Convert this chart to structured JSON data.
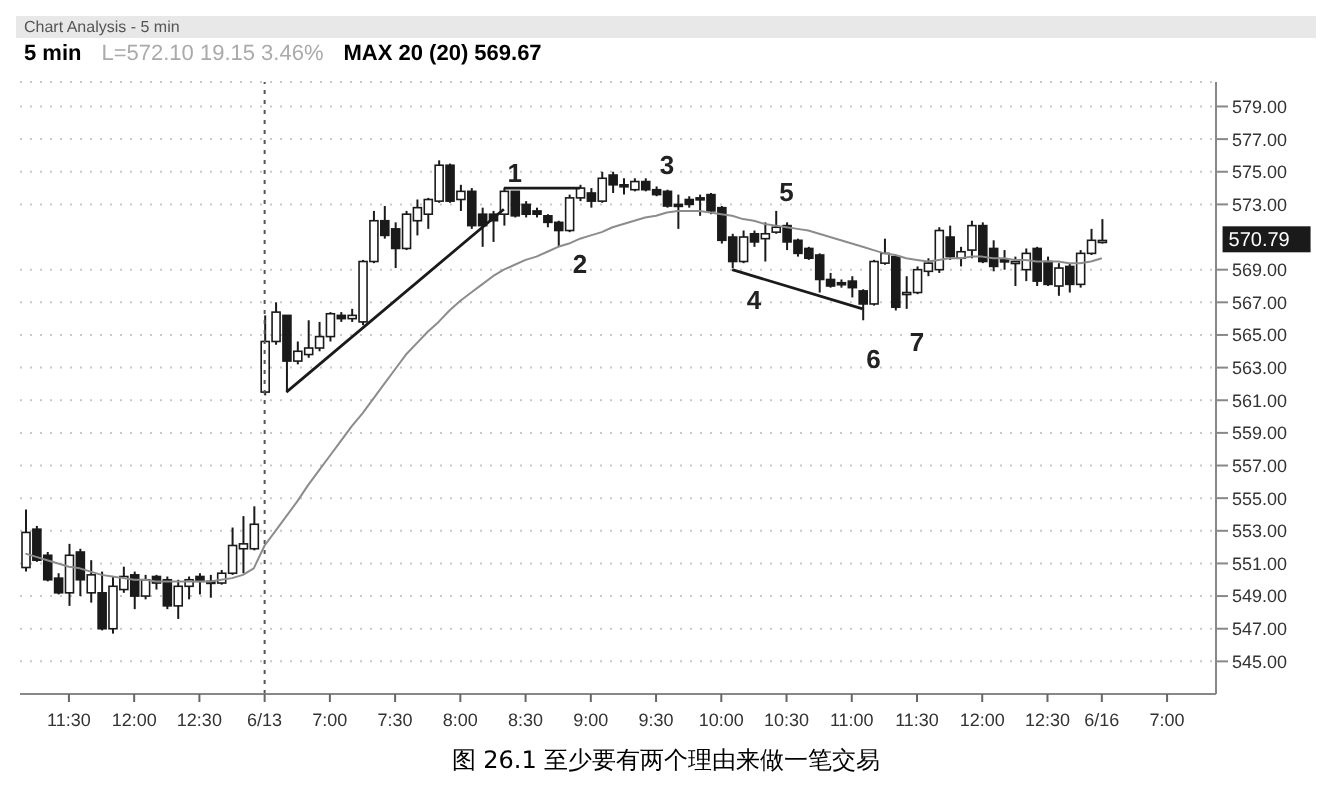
{
  "chart_data": {
    "type": "candlestick",
    "title": "5 min",
    "subtitle": "L=572.10  19.15  3.46%",
    "annotations": [
      "Chart Analysis - 5 min",
      "MAX 20 (20)  569.67",
      "图 26.1 至少要有两个理由来做一笔交易",
      "1",
      "2",
      "3",
      "4",
      "5",
      "6",
      "7",
      "570.79"
    ],
    "categories": [
      null,
      null,
      null,
      null,
      "11:30",
      null,
      null,
      null,
      null,
      null,
      "12:00",
      null,
      null,
      null,
      null,
      null,
      "12:30",
      null,
      null,
      null,
      null,
      null,
      "6/13",
      null,
      null,
      null,
      null,
      null,
      "7:00",
      null,
      null,
      null,
      null,
      null,
      "7:30",
      null,
      null,
      null,
      null,
      null,
      "8:00",
      null,
      null,
      null,
      null,
      null,
      "8:30",
      null,
      null,
      null,
      null,
      null,
      "9:00",
      null,
      null,
      null,
      null,
      null,
      "9:30",
      null,
      null,
      null,
      null,
      null,
      "10:00",
      null,
      null,
      null,
      null,
      null,
      "10:30",
      null,
      null,
      null,
      null,
      null,
      "11:00",
      null,
      null,
      null,
      null,
      null,
      "11:30",
      null,
      null,
      null,
      null,
      null,
      "12:00",
      null,
      null,
      null,
      null,
      null,
      "12:30",
      null,
      null,
      null,
      null,
      "6/16",
      null,
      null,
      null,
      null,
      null,
      "7:00",
      null,
      null,
      null,
      null
    ],
    "ohlc": [
      [
        550.75,
        554.3,
        550.5,
        552.9
      ],
      [
        553.1,
        553.3,
        551.1,
        551.2
      ],
      [
        551.5,
        551.7,
        549.9,
        550.0
      ],
      [
        550.1,
        550.4,
        549.1,
        549.2
      ],
      [
        549.2,
        552.2,
        548.4,
        551.5
      ],
      [
        551.7,
        551.9,
        549.0,
        550.0
      ],
      [
        549.2,
        551.2,
        548.6,
        550.3
      ],
      [
        549.2,
        550.5,
        546.9,
        547.0
      ],
      [
        547.0,
        550.2,
        546.7,
        549.6
      ],
      [
        549.4,
        550.8,
        549.2,
        550.2
      ],
      [
        550.3,
        550.5,
        548.2,
        549.0
      ],
      [
        549.0,
        550.3,
        548.8,
        550.0
      ],
      [
        550.2,
        550.3,
        549.4,
        549.8
      ],
      [
        550.0,
        550.2,
        548.2,
        548.4
      ],
      [
        548.4,
        550.0,
        547.6,
        549.6
      ],
      [
        549.6,
        550.2,
        548.8,
        550.0
      ],
      [
        550.2,
        550.4,
        549.1,
        549.9
      ],
      [
        549.9,
        550.3,
        548.9,
        549.8
      ],
      [
        549.8,
        550.6,
        549.7,
        550.4
      ],
      [
        550.4,
        553.2,
        550.3,
        552.1
      ],
      [
        551.9,
        553.9,
        550.4,
        552.2
      ],
      [
        551.9,
        554.5,
        551.8,
        553.4
      ],
      [
        561.5,
        566.2,
        561.3,
        564.6
      ],
      [
        564.6,
        567.0,
        564.4,
        566.4
      ],
      [
        566.2,
        566.2,
        561.5,
        563.4
      ],
      [
        563.4,
        564.6,
        563.2,
        564.0
      ],
      [
        563.8,
        565.9,
        563.6,
        564.2
      ],
      [
        564.2,
        565.8,
        564.0,
        564.9
      ],
      [
        564.9,
        566.4,
        564.6,
        566.3
      ],
      [
        566.2,
        566.4,
        565.8,
        566.0
      ],
      [
        566.0,
        566.6,
        565.8,
        566.2
      ],
      [
        565.8,
        569.6,
        565.6,
        569.5
      ],
      [
        569.5,
        572.6,
        569.4,
        572.0
      ],
      [
        572.0,
        572.9,
        570.9,
        571.1
      ],
      [
        571.5,
        571.9,
        569.1,
        570.3
      ],
      [
        570.3,
        572.6,
        570.2,
        572.4
      ],
      [
        572.0,
        573.3,
        571.1,
        572.8
      ],
      [
        572.4,
        573.4,
        571.5,
        573.3
      ],
      [
        573.2,
        575.7,
        573.1,
        575.4
      ],
      [
        575.4,
        575.5,
        573.1,
        573.2
      ],
      [
        573.3,
        574.2,
        572.6,
        573.8
      ],
      [
        573.8,
        574.0,
        571.5,
        571.7
      ],
      [
        572.4,
        572.8,
        570.4,
        571.7
      ],
      [
        572.4,
        572.6,
        570.7,
        572.0
      ],
      [
        572.4,
        574.0,
        571.7,
        573.8
      ],
      [
        573.8,
        573.8,
        572.2,
        572.3
      ],
      [
        573.0,
        573.2,
        572.2,
        572.4
      ],
      [
        572.6,
        572.8,
        572.2,
        572.4
      ],
      [
        572.3,
        572.4,
        571.6,
        571.9
      ],
      [
        571.9,
        572.0,
        570.4,
        571.4
      ],
      [
        571.4,
        573.6,
        571.3,
        573.4
      ],
      [
        573.4,
        574.2,
        573.2,
        574.0
      ],
      [
        573.7,
        574.0,
        572.8,
        573.2
      ],
      [
        573.2,
        575.0,
        573.1,
        574.6
      ],
      [
        574.8,
        575.0,
        573.7,
        574.2
      ],
      [
        574.2,
        574.6,
        573.6,
        574.1
      ],
      [
        573.9,
        574.6,
        573.8,
        574.4
      ],
      [
        574.4,
        574.6,
        573.8,
        573.9
      ],
      [
        573.9,
        574.1,
        573.5,
        573.6
      ],
      [
        573.8,
        573.9,
        572.8,
        572.9
      ],
      [
        573.0,
        573.6,
        571.5,
        572.9
      ],
      [
        573.3,
        573.5,
        572.8,
        573.0
      ],
      [
        573.4,
        573.6,
        572.3,
        573.3
      ],
      [
        573.6,
        573.7,
        572.4,
        572.6
      ],
      [
        572.8,
        572.9,
        570.6,
        570.8
      ],
      [
        571.0,
        571.2,
        569.1,
        569.5
      ],
      [
        569.5,
        571.4,
        569.4,
        571.0
      ],
      [
        571.2,
        571.4,
        570.4,
        570.7
      ],
      [
        570.9,
        571.9,
        569.5,
        571.2
      ],
      [
        571.3,
        572.6,
        571.2,
        571.6
      ],
      [
        571.7,
        571.9,
        570.2,
        570.7
      ],
      [
        570.8,
        570.9,
        569.8,
        570.0
      ],
      [
        570.3,
        570.4,
        569.6,
        569.7
      ],
      [
        569.9,
        570.0,
        567.6,
        568.4
      ],
      [
        568.4,
        568.8,
        567.9,
        568.0
      ],
      [
        568.2,
        568.4,
        567.9,
        568.1
      ],
      [
        568.3,
        568.6,
        567.3,
        567.9
      ],
      [
        567.7,
        567.8,
        565.9,
        566.9
      ],
      [
        566.9,
        569.6,
        566.8,
        569.5
      ],
      [
        569.4,
        570.9,
        569.3,
        570.0
      ],
      [
        569.8,
        569.8,
        566.5,
        566.7
      ],
      [
        567.5,
        568.6,
        566.6,
        567.6
      ],
      [
        567.6,
        569.2,
        567.5,
        569.0
      ],
      [
        568.9,
        569.7,
        568.6,
        569.4
      ],
      [
        569.0,
        571.6,
        568.8,
        571.4
      ],
      [
        571.0,
        571.7,
        569.6,
        569.8
      ],
      [
        569.7,
        570.4,
        569.2,
        570.1
      ],
      [
        570.2,
        572.0,
        569.7,
        571.7
      ],
      [
        571.7,
        571.9,
        569.4,
        569.5
      ],
      [
        570.3,
        570.8,
        568.9,
        569.2
      ],
      [
        569.6,
        570.2,
        569.0,
        569.5
      ],
      [
        569.4,
        569.8,
        568.0,
        569.5
      ],
      [
        569.0,
        570.3,
        568.3,
        570.0
      ],
      [
        570.3,
        570.4,
        568.0,
        568.3
      ],
      [
        569.5,
        569.8,
        568.0,
        568.1
      ],
      [
        568.0,
        569.4,
        567.4,
        569.1
      ],
      [
        569.2,
        569.4,
        567.6,
        568.1
      ],
      [
        568.1,
        570.2,
        567.9,
        570.0
      ],
      [
        570.0,
        571.5,
        569.9,
        570.8
      ],
      [
        570.7,
        572.1,
        570.6,
        570.79
      ],
      null,
      null,
      null,
      null,
      null,
      null,
      null,
      null,
      null,
      null
    ],
    "series": [
      {
        "type": "line",
        "color": "#8c8c8c",
        "values": [
          551.6,
          551.4,
          551.2,
          551.0,
          550.8,
          550.7,
          550.5,
          550.3,
          550.2,
          550.1,
          550.0,
          550.0,
          549.9,
          549.9,
          549.9,
          549.9,
          549.9,
          549.9,
          550.0,
          550.1,
          550.3,
          550.7,
          552.1,
          553.0,
          553.9,
          554.8,
          555.8,
          556.7,
          557.6,
          558.5,
          559.4,
          560.2,
          561.1,
          562.0,
          562.9,
          563.8,
          564.5,
          565.2,
          565.8,
          566.5,
          567.1,
          567.6,
          568.1,
          568.6,
          569.0,
          569.3,
          569.6,
          569.8,
          570.1,
          570.4,
          570.6,
          570.9,
          571.1,
          571.3,
          571.6,
          571.8,
          572.0,
          572.2,
          572.3,
          572.5,
          572.6,
          572.6,
          572.6,
          572.5,
          572.4,
          572.3,
          572.1,
          572.0,
          571.8,
          571.7,
          571.6,
          571.5,
          571.4,
          571.2,
          571.0,
          570.8,
          570.6,
          570.4,
          570.2,
          570.0,
          569.9,
          569.7,
          569.6,
          569.5,
          569.6,
          569.7,
          569.7,
          569.8,
          569.8,
          569.7,
          569.7,
          569.6,
          569.6,
          569.5,
          569.5,
          569.5,
          569.4,
          569.4,
          569.5,
          569.7,
          null,
          null,
          null,
          null,
          null,
          null,
          null,
          null,
          null,
          null
        ]
      },
      {
        "type": "line",
        "color": "#1a1a1a",
        "values": [
          null,
          null,
          null,
          null,
          null,
          null,
          null,
          null,
          null,
          null,
          null,
          null,
          null,
          null,
          null,
          null,
          null,
          null,
          null,
          null,
          null,
          null,
          null,
          null,
          561.5,
          null,
          null,
          null,
          null,
          null,
          null,
          null,
          null,
          null,
          null,
          null,
          null,
          null,
          null,
          null,
          null,
          null,
          null,
          null,
          572.7,
          null,
          null,
          null,
          null,
          null,
          null,
          null,
          null,
          null,
          null,
          null,
          null,
          null,
          null,
          null,
          null,
          null,
          null,
          null,
          null,
          null,
          null,
          null,
          null,
          null,
          null,
          null,
          null,
          null,
          null,
          null,
          null,
          null,
          null,
          null,
          null,
          null,
          null,
          null,
          null,
          null,
          null,
          null,
          null,
          null,
          null,
          null,
          null,
          null,
          null,
          null,
          null,
          null,
          null,
          null,
          null,
          null,
          null,
          null,
          null,
          null,
          null,
          null,
          null,
          null
        ]
      },
      {
        "type": "line",
        "color": "#1a1a1a",
        "values": [
          null,
          null,
          null,
          null,
          null,
          null,
          null,
          null,
          null,
          null,
          null,
          null,
          null,
          null,
          null,
          null,
          null,
          null,
          null,
          null,
          null,
          null,
          null,
          null,
          null,
          null,
          null,
          null,
          null,
          null,
          null,
          null,
          null,
          null,
          null,
          null,
          null,
          null,
          null,
          null,
          null,
          null,
          null,
          null,
          574.0,
          null,
          null,
          null,
          null,
          null,
          null,
          574.0,
          null,
          null,
          null,
          null,
          null,
          null,
          null,
          null,
          null,
          null,
          null,
          null,
          null,
          null,
          null,
          null,
          null,
          null,
          null,
          null,
          null,
          null,
          null,
          null,
          null,
          null,
          null,
          null,
          null,
          null,
          null,
          null,
          null,
          null,
          null,
          null,
          null,
          null,
          null,
          null,
          null,
          null,
          null,
          null,
          null,
          null,
          null,
          null,
          null,
          null,
          null,
          null,
          null,
          null,
          null,
          null,
          null,
          null
        ]
      },
      {
        "type": "line",
        "color": "#1a1a1a",
        "values": [
          null,
          null,
          null,
          null,
          null,
          null,
          null,
          null,
          null,
          null,
          null,
          null,
          null,
          null,
          null,
          null,
          null,
          null,
          null,
          null,
          null,
          null,
          null,
          null,
          null,
          null,
          null,
          null,
          null,
          null,
          null,
          null,
          null,
          null,
          null,
          null,
          null,
          null,
          null,
          null,
          null,
          null,
          null,
          null,
          null,
          null,
          null,
          null,
          null,
          null,
          null,
          null,
          null,
          null,
          null,
          null,
          null,
          null,
          null,
          null,
          null,
          null,
          null,
          null,
          null,
          569.0,
          null,
          null,
          null,
          null,
          null,
          null,
          null,
          null,
          null,
          null,
          null,
          566.6,
          null,
          null,
          null,
          null,
          null,
          null,
          null,
          null,
          null,
          null,
          null,
          null,
          null,
          null,
          null,
          null,
          null,
          null,
          null,
          null,
          null,
          null,
          null,
          null,
          null,
          null,
          null,
          null,
          null,
          null,
          null,
          null
        ]
      }
    ],
    "ref_lines": [
      {
        "axis": "x",
        "value": "6/13",
        "line_style": "dotted",
        "color": "#555555"
      }
    ],
    "ylim": [
      543,
      580.5
    ],
    "yticks": [
      {
        "value": 545,
        "label": "545.00"
      },
      {
        "value": 547,
        "label": "547.00"
      },
      {
        "value": 549,
        "label": "549.00"
      },
      {
        "value": 551,
        "label": "551.00"
      },
      {
        "value": 553,
        "label": "553.00"
      },
      {
        "value": 555,
        "label": "555.00"
      },
      {
        "value": 557,
        "label": "557.00"
      },
      {
        "value": 559,
        "label": "559.00"
      },
      {
        "value": 561,
        "label": "561.00"
      },
      {
        "value": 563,
        "label": "563.00"
      },
      {
        "value": 565,
        "label": "565.00"
      },
      {
        "value": 567,
        "label": "567.00"
      },
      {
        "value": 569,
        "label": "569.00"
      },
      {
        "value": 573,
        "label": "573.00"
      },
      {
        "value": 575,
        "label": "575.00"
      },
      {
        "value": 577,
        "label": "577.00"
      },
      {
        "value": 579,
        "label": "579.00"
      }
    ],
    "grid": "y",
    "marker": "none",
    "line_style": "solid"
  }
}
